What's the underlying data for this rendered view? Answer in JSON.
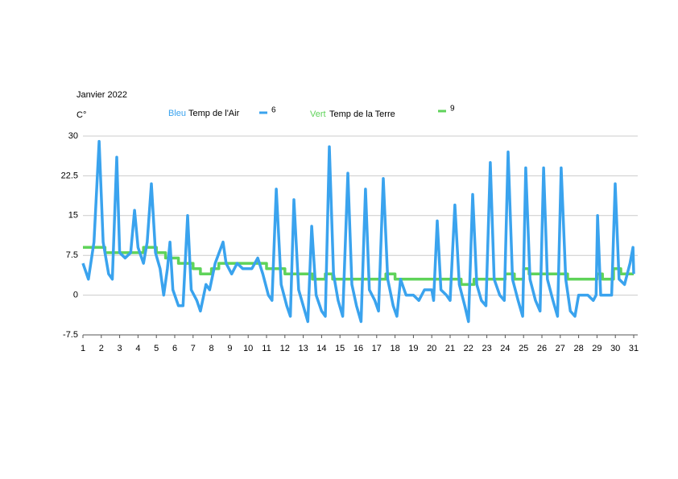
{
  "chart_data": {
    "type": "line",
    "title": "Janvier  2022",
    "y_label": "C°",
    "annotations": [
      {
        "text": "Bleu",
        "color": "#3aa3ee"
      },
      {
        "text": "Temp de l'Air",
        "color": "#000000"
      },
      {
        "text": "Vert",
        "color": "#5fd35a"
      },
      {
        "text": "Temp de la Terre",
        "color": "#000000"
      }
    ],
    "xlim": [
      1,
      31
    ],
    "xticks": [
      1,
      2,
      3,
      4,
      5,
      6,
      7,
      8,
      9,
      10,
      11,
      12,
      13,
      14,
      15,
      16,
      17,
      18,
      19,
      20,
      21,
      22,
      23,
      24,
      25,
      26,
      27,
      28,
      29,
      30,
      31
    ],
    "ylim": [
      -7.5,
      30
    ],
    "yticks": [
      -7.5,
      0,
      7.5,
      15,
      22.5,
      30
    ],
    "grid": true,
    "series": [
      {
        "name": "6",
        "color": "#3aa3ee",
        "x": [
          1.0,
          1.3,
          1.6,
          1.88,
          2.1,
          2.4,
          2.6,
          2.84,
          3.0,
          3.3,
          3.6,
          3.81,
          4.0,
          4.3,
          4.5,
          4.73,
          4.95,
          5.2,
          5.4,
          5.6,
          5.74,
          5.9,
          6.2,
          6.45,
          6.7,
          6.9,
          7.2,
          7.4,
          7.7,
          7.9,
          8.2,
          8.63,
          8.8,
          9.1,
          9.4,
          9.7,
          10.2,
          10.52,
          10.8,
          11.1,
          11.3,
          11.53,
          11.8,
          12.1,
          12.3,
          12.49,
          12.75,
          13.0,
          13.25,
          13.46,
          13.7,
          14.0,
          14.2,
          14.42,
          14.65,
          14.9,
          15.15,
          15.43,
          15.65,
          15.9,
          16.15,
          16.39,
          16.6,
          16.9,
          17.1,
          17.36,
          17.6,
          17.9,
          18.1,
          18.3,
          18.6,
          19.0,
          19.3,
          19.6,
          20.0,
          20.1,
          20.3,
          20.5,
          20.8,
          21.0,
          21.26,
          21.5,
          21.8,
          22.0,
          22.23,
          22.45,
          22.7,
          22.95,
          23.19,
          23.4,
          23.7,
          23.95,
          24.16,
          24.4,
          24.7,
          24.95,
          25.12,
          25.35,
          25.65,
          25.9,
          26.09,
          26.3,
          26.6,
          26.85,
          27.05,
          27.3,
          27.55,
          27.8,
          28.0,
          28.5,
          28.8,
          28.95,
          29.03,
          29.2,
          29.5,
          29.8,
          29.99,
          30.2,
          30.5,
          30.8,
          30.96,
          31.0
        ],
        "values": [
          6,
          3,
          10,
          29,
          10,
          4,
          3,
          26,
          8,
          7,
          8,
          16,
          9,
          6,
          10,
          21,
          8,
          5,
          0,
          5,
          10,
          1,
          -2,
          -2,
          15,
          1,
          -1,
          -3,
          2,
          1,
          6,
          10,
          6,
          4,
          6,
          5,
          5,
          7,
          4,
          0,
          -1,
          20,
          2,
          -2,
          -4,
          18,
          1,
          -2,
          -5,
          13,
          0,
          -3,
          -4,
          28,
          4,
          -1,
          -4,
          23,
          2,
          -2,
          -5,
          20,
          1,
          -1,
          -3,
          22,
          3,
          -2,
          -4,
          3,
          0,
          0,
          -1,
          1,
          1,
          -1,
          14,
          1,
          0,
          -1,
          17,
          2,
          -2,
          -5,
          19,
          2,
          -1,
          -2,
          25,
          3,
          0,
          -1,
          27,
          3,
          -1,
          -4,
          24,
          3,
          -1,
          -3,
          24,
          3,
          -1,
          -4,
          24,
          3,
          -3,
          -4,
          0,
          0,
          -1,
          0,
          15,
          0,
          0,
          0,
          21,
          3,
          2,
          6,
          9,
          4
        ]
      },
      {
        "name": "9",
        "color": "#5fd35a",
        "x": [
          1,
          2.2,
          2.2,
          4.3,
          4.3,
          5.0,
          5.0,
          5.5,
          5.5,
          6.2,
          6.2,
          7.0,
          7.0,
          7.4,
          7.4,
          8.0,
          8.0,
          8.4,
          8.4,
          11.0,
          11.0,
          12.0,
          12.0,
          13.5,
          13.5,
          14.2,
          14.2,
          14.6,
          14.6,
          17.5,
          17.5,
          18.0,
          18.0,
          21.6,
          21.6,
          22.3,
          22.3,
          24.0,
          24.0,
          24.5,
          24.5,
          25.0,
          25.0,
          25.3,
          25.3,
          27.4,
          27.4,
          29.0,
          29.0,
          29.3,
          29.3,
          29.9,
          29.9,
          30.3,
          30.3,
          31
        ],
        "values": [
          9,
          9,
          8,
          8,
          9,
          9,
          8,
          8,
          7,
          7,
          6,
          6,
          5,
          5,
          4,
          4,
          5,
          5,
          6,
          6,
          5,
          5,
          4,
          4,
          3,
          3,
          4,
          4,
          3,
          3,
          4,
          4,
          3,
          3,
          2,
          2,
          3,
          3,
          4,
          4,
          3,
          3,
          5,
          5,
          4,
          4,
          3,
          3,
          4,
          4,
          3,
          3,
          5,
          5,
          4,
          4
        ]
      }
    ]
  }
}
